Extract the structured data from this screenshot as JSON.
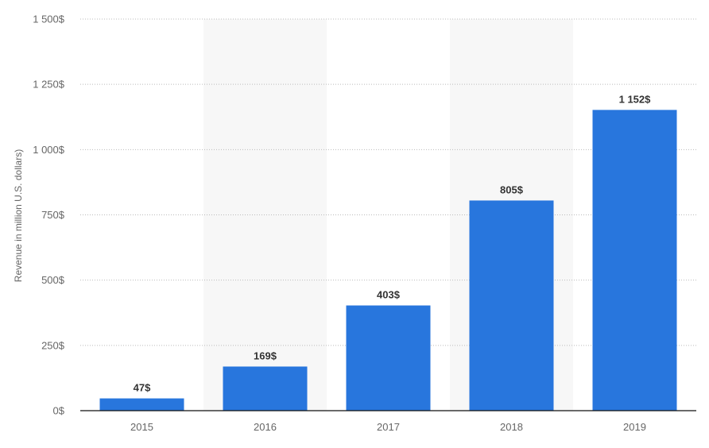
{
  "chart_data": {
    "type": "bar",
    "categories": [
      "2015",
      "2016",
      "2017",
      "2018",
      "2019"
    ],
    "values": [
      47,
      169,
      403,
      805,
      1152
    ],
    "data_labels": [
      "47$",
      "169$",
      "403$",
      "805$",
      "1 152$"
    ],
    "title": "",
    "xlabel": "",
    "ylabel": "Revenue in million U.S. dollars)",
    "ylim": [
      0,
      1500
    ],
    "yticks": [
      0,
      250,
      500,
      750,
      1000,
      1250,
      1500
    ],
    "ytick_labels": [
      "0$",
      "250$",
      "500$",
      "750$",
      "1 000$",
      "1 250$",
      "1 500$"
    ],
    "grid": true,
    "legend": "none",
    "colors": {
      "bar": "#2876dd",
      "band": "#f7f7f7"
    }
  }
}
